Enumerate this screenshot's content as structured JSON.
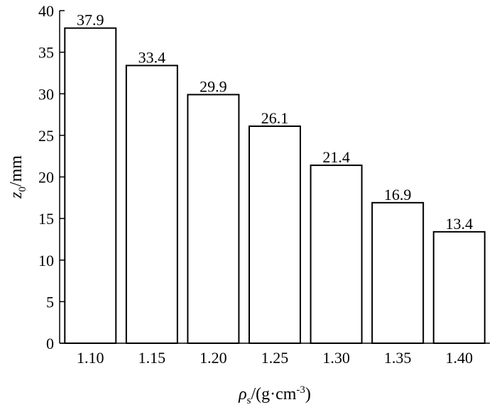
{
  "chart_data": {
    "type": "bar",
    "categories": [
      "1.10",
      "1.15",
      "1.20",
      "1.25",
      "1.30",
      "1.35",
      "1.40"
    ],
    "values": [
      37.9,
      33.4,
      29.9,
      26.1,
      21.4,
      16.9,
      13.4
    ],
    "value_labels": [
      "37.9",
      "33.4",
      "29.9",
      "26.1",
      "21.4",
      "16.9",
      "13.4"
    ],
    "xlabel": {
      "symbol": "ρ",
      "subscript": "s",
      "unit_prefix": "/(g·cm",
      "superscript": "-3",
      "unit_suffix": ")"
    },
    "ylabel": {
      "symbol": "z",
      "subscript": "0",
      "unit": "/mm"
    },
    "ylim": [
      0,
      40
    ],
    "yticks": [
      0,
      5,
      10,
      15,
      20,
      25,
      30,
      35,
      40
    ],
    "grid": false,
    "bar_fill": "#ffffff",
    "bar_stroke": "#000000"
  }
}
